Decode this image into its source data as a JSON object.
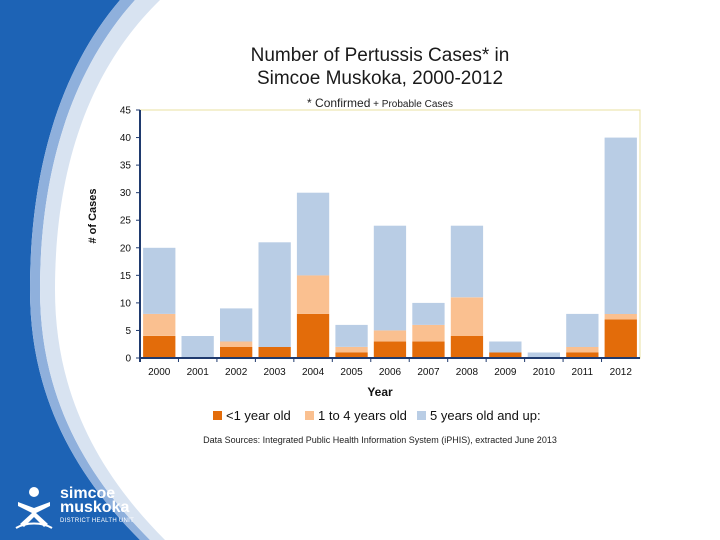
{
  "colors": {
    "under1": "#e36c0a",
    "age1to4": "#fac090",
    "age5plus": "#b9cde5",
    "brand_blue": "#1d63b5",
    "plot_border": "#e8e0a0"
  },
  "chart_data": {
    "type": "bar",
    "stacked": true,
    "title_line1": "Number of Pertussis Cases* in",
    "title_line2": "Simcoe Muskoka, 2000-2012",
    "subtitle_prefix": "* Confirmed",
    "subtitle_suffix": "+ Probable Cases",
    "xlabel": "Year",
    "ylabel": "# of Cases",
    "ylim": [
      0,
      45
    ],
    "yticks": [
      0,
      5,
      10,
      15,
      20,
      25,
      30,
      35,
      40,
      45
    ],
    "categories": [
      "2000",
      "2001",
      "2002",
      "2003",
      "2004",
      "2005",
      "2006",
      "2007",
      "2008",
      "2009",
      "2010",
      "2011",
      "2012"
    ],
    "series": [
      {
        "name": "<1 year old",
        "values": [
          4,
          0,
          2,
          2,
          8,
          1,
          3,
          3,
          4,
          1,
          0,
          1,
          7
        ]
      },
      {
        "name": "1 to 4 years old",
        "values": [
          4,
          0,
          1,
          0,
          7,
          1,
          2,
          3,
          7,
          0,
          0,
          1,
          1
        ]
      },
      {
        "name": "5 years old and up:",
        "values": [
          12,
          4,
          6,
          19,
          15,
          4,
          19,
          4,
          13,
          2,
          1,
          6,
          32
        ]
      }
    ],
    "legend_position": "bottom",
    "source_note": "Data Sources: Integrated Public Health Information System (iPHIS), extracted June 2013"
  },
  "logo": {
    "name_line1": "simcoe",
    "name_line2": "muskoka",
    "unit": "DISTRICT HEALTH UNIT"
  }
}
